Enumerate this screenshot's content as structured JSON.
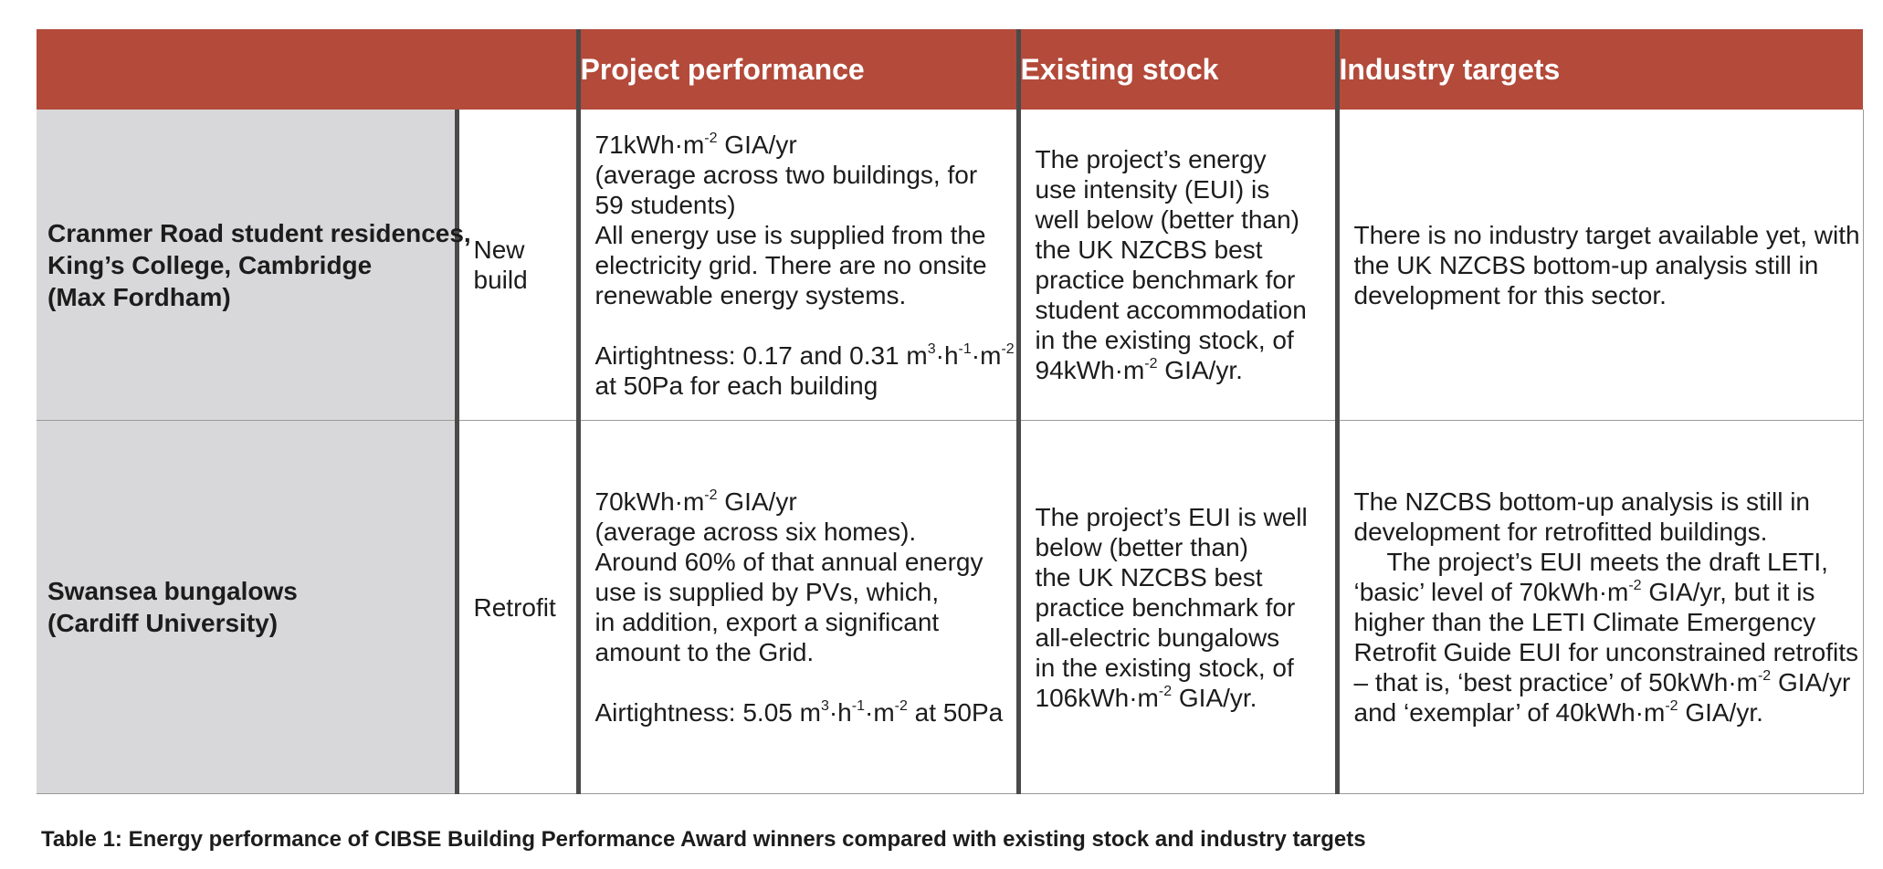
{
  "table": {
    "headers": {
      "project_performance": "Project performance",
      "existing_stock": "Existing stock",
      "industry_targets": "Industry targets"
    },
    "rows": [
      {
        "project": [
          "Cranmer Road student residences,",
          "King’s College, Cambridge",
          "(Max Fordham)"
        ],
        "type": [
          "New",
          "build"
        ],
        "performance": {
          "eui_value": "71kWh·m",
          "eui_exp": "-2",
          "eui_unit": " GIA/yr",
          "lines": [
            "(average across two buildings, for",
            "59 students)",
            "All energy use is supplied from the",
            "electricity grid. There are no onsite",
            "renewable energy systems."
          ],
          "air_a": "Airtightness: 0.17 and 0.31 m",
          "air_e1": "3",
          "air_b": "·h",
          "air_e2": "-1",
          "air_c": "·m",
          "air_e3": "-2",
          "air_line2": "at 50Pa for each building"
        },
        "stock": {
          "lines": [
            "The project’s energy",
            "use intensity (EUI) is",
            "well below (better than)",
            "the UK NZCBS best",
            "practice benchmark for",
            "student accommodation",
            "in the existing stock, of"
          ],
          "val": "94kWh·m",
          "exp": "-2",
          "unit": " GIA/yr."
        },
        "targets": {
          "lines": [
            "There is no industry target available yet, with",
            "the UK NZCBS bottom-up analysis still in",
            "development for this sector."
          ]
        }
      },
      {
        "project": [
          "Swansea bungalows",
          "(Cardiff University)"
        ],
        "type": [
          "Retrofit"
        ],
        "performance": {
          "eui_value": "70kWh·m",
          "eui_exp": "-2",
          "eui_unit": " GIA/yr",
          "lines": [
            "(average across six homes).",
            "Around 60% of that annual energy",
            "use is supplied by PVs, which,",
            "in addition, export a significant",
            "amount to the Grid."
          ],
          "air_a": "Airtightness: 5.05 m",
          "air_e1": "3",
          "air_b": "·h",
          "air_e2": "-1",
          "air_c": "·m",
          "air_e3": "-2",
          "air_tail": " at 50Pa"
        },
        "stock": {
          "lines": [
            "The project’s EUI is well",
            "below (better than)",
            "the UK NZCBS best",
            "practice benchmark for",
            "all-electric bungalows",
            "in the existing stock, of"
          ],
          "val": "106kWh·m",
          "exp": "-2",
          "unit": " GIA/yr."
        },
        "targets": {
          "l1": "The NZCBS bottom-up analysis is still in",
          "l2": "development for retrofitted buildings.",
          "l3": "The project’s EUI meets the draft LETI,",
          "l4a": "‘basic’ level of 70kWh·m",
          "l4e": "-2",
          "l4b": " GIA/yr, but it is",
          "l5": "higher than the LETI Climate Emergency",
          "l6": "Retrofit Guide EUI for unconstrained retrofits",
          "l7a": "– that is, ‘best practice’ of 50kWh·m",
          "l7e": "-2",
          "l7b": " GIA/yr",
          "l8a": "and ‘exemplar’ of 40kWh·m",
          "l8e": "-2",
          "l8b": " GIA/yr."
        }
      }
    ]
  },
  "caption": "Table 1: Energy performance of CIBSE Building Performance Award winners compared with existing stock and industry targets",
  "colors": {
    "header_bg": "#b34a3a",
    "project_bg": "#d8d8da",
    "separator": "#4a4a4a"
  }
}
